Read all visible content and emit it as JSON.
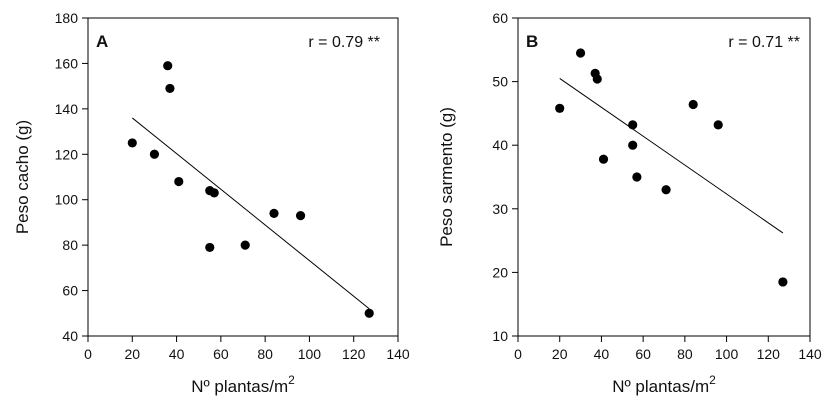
{
  "chart_data": [
    {
      "type": "scatter",
      "panel": "A",
      "annotation": "r = 0.79 **",
      "xlabel": "Nº plantas/m",
      "xlabel_sup": "2",
      "ylabel": "Peso cacho (g)",
      "xlim": [
        0,
        140
      ],
      "ylim": [
        40,
        180
      ],
      "xticks": [
        0,
        20,
        40,
        60,
        80,
        100,
        120,
        140
      ],
      "yticks": [
        40,
        60,
        80,
        100,
        120,
        140,
        160,
        180
      ],
      "grid": false,
      "color": "#000000",
      "points": [
        {
          "x": 20,
          "y": 125
        },
        {
          "x": 30,
          "y": 120
        },
        {
          "x": 36,
          "y": 159
        },
        {
          "x": 37,
          "y": 149
        },
        {
          "x": 41,
          "y": 108
        },
        {
          "x": 55,
          "y": 104
        },
        {
          "x": 57,
          "y": 103
        },
        {
          "x": 55,
          "y": 79
        },
        {
          "x": 71,
          "y": 80
        },
        {
          "x": 84,
          "y": 94
        },
        {
          "x": 96,
          "y": 93
        },
        {
          "x": 127,
          "y": 50
        }
      ],
      "trendline": {
        "x": [
          20,
          127
        ],
        "y": [
          136,
          52
        ]
      }
    },
    {
      "type": "scatter",
      "panel": "B",
      "annotation": "r = 0.71 **",
      "xlabel": "Nº plantas/m",
      "xlabel_sup": "2",
      "ylabel": "Peso sarmento (g)",
      "xlim": [
        0,
        140
      ],
      "ylim": [
        10,
        60
      ],
      "xticks": [
        0,
        20,
        40,
        60,
        80,
        100,
        120,
        140
      ],
      "yticks": [
        10,
        20,
        30,
        40,
        50,
        60
      ],
      "grid": false,
      "color": "#000000",
      "points": [
        {
          "x": 20,
          "y": 45.8
        },
        {
          "x": 30,
          "y": 54.5
        },
        {
          "x": 37,
          "y": 51.3
        },
        {
          "x": 38,
          "y": 50.4
        },
        {
          "x": 41,
          "y": 37.8
        },
        {
          "x": 55,
          "y": 43.2
        },
        {
          "x": 55,
          "y": 40
        },
        {
          "x": 57,
          "y": 35
        },
        {
          "x": 71,
          "y": 33
        },
        {
          "x": 84,
          "y": 46.4
        },
        {
          "x": 96,
          "y": 43.2
        },
        {
          "x": 127,
          "y": 18.5
        }
      ],
      "trendline": {
        "x": [
          20,
          127
        ],
        "y": [
          50.5,
          26.2
        ]
      }
    }
  ]
}
